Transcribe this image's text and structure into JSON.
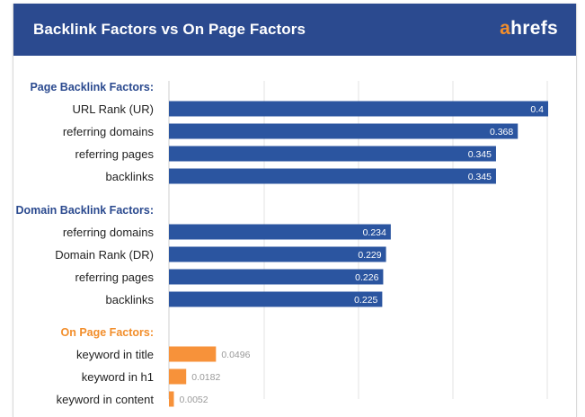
{
  "header": {
    "title": "Backlink Factors vs On Page Factors",
    "logo_first": "a",
    "logo_rest": "hrefs"
  },
  "colors": {
    "header_bg": "#2b4a8f",
    "bar_blue": "#2b55a0",
    "bar_orange": "#f7923a",
    "group_blue": "#2b4a8f",
    "group_orange": "#f28e2b",
    "logo_accent": "#f28e2b"
  },
  "chart_data": {
    "type": "bar",
    "orientation": "horizontal",
    "title": "Backlink Factors vs On Page Factors",
    "xlim": [
      0,
      0.4
    ],
    "grid": true,
    "groups": [
      {
        "label": "Page Backlink Factors:",
        "color": "blue",
        "categories": [
          "URL Rank (UR)",
          "referring domains",
          "referring pages",
          "backlinks"
        ],
        "values": [
          0.4,
          0.368,
          0.345,
          0.345
        ],
        "value_labels": [
          "0.4",
          "0.368",
          "0.345",
          "0.345"
        ]
      },
      {
        "label": "Domain Backlink Factors:",
        "color": "blue",
        "categories": [
          "referring domains",
          "Domain Rank (DR)",
          "referring pages",
          "backlinks"
        ],
        "values": [
          0.234,
          0.229,
          0.226,
          0.225
        ],
        "value_labels": [
          "0.234",
          "0.229",
          "0.226",
          "0.225"
        ]
      },
      {
        "label": "On Page Factors:",
        "color": "orange",
        "categories": [
          "keyword in title",
          "keyword in h1",
          "keyword in content"
        ],
        "values": [
          0.0496,
          0.0182,
          0.0052
        ],
        "value_labels": [
          "0.0496",
          "0.0182",
          "0.0052"
        ]
      }
    ]
  }
}
